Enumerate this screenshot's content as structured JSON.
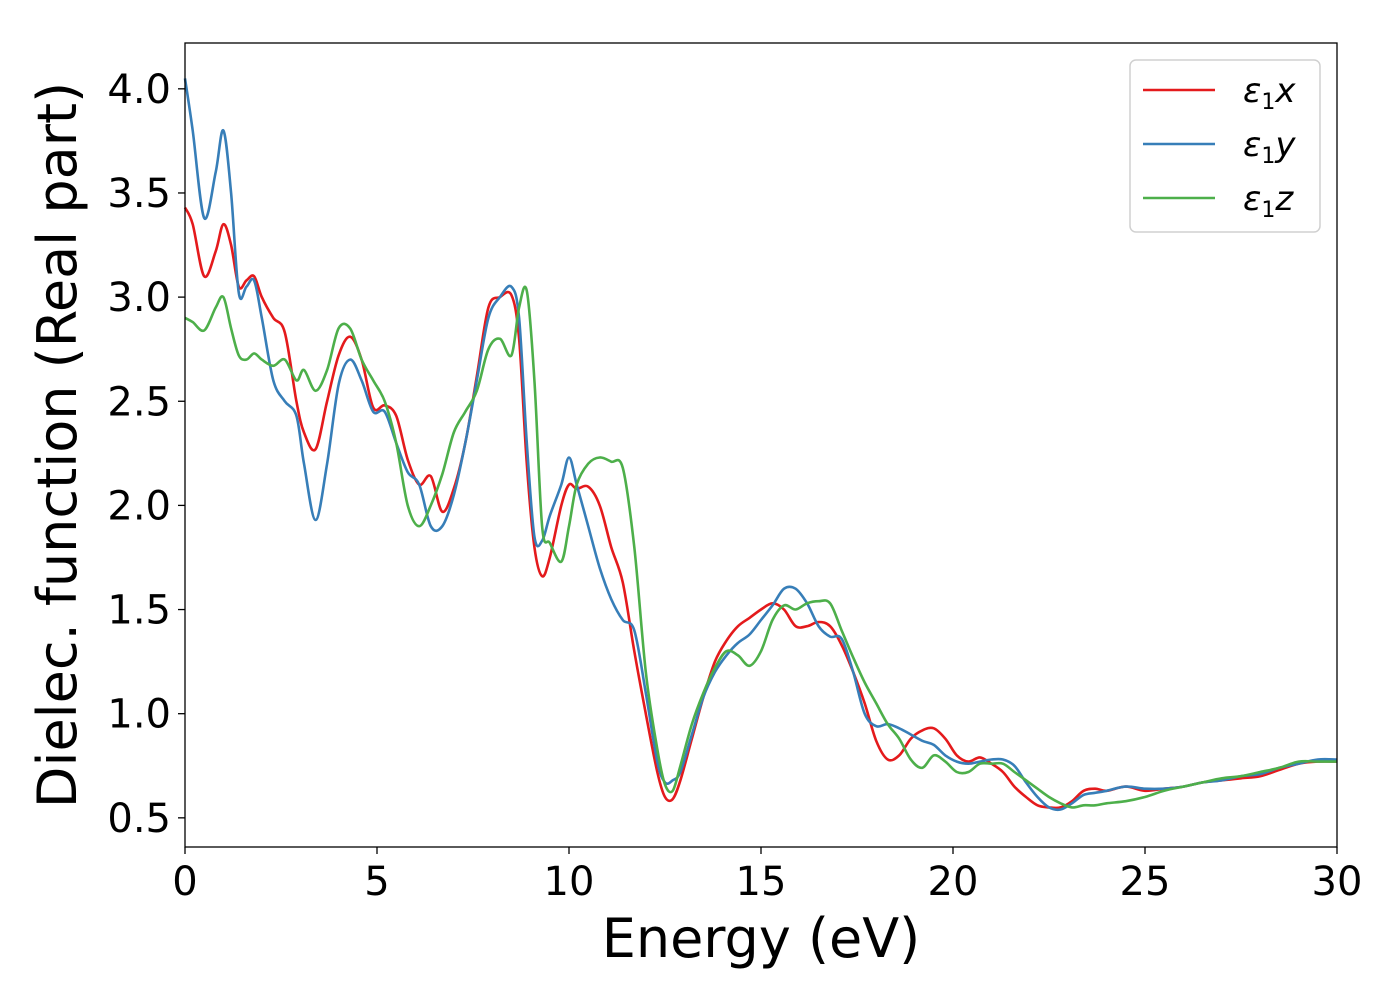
{
  "chart_data": {
    "type": "line",
    "title": "",
    "xlabel": "Energy (eV)",
    "ylabel": "Dielec. function (Real part)",
    "xlim": [
      0,
      30
    ],
    "ylim": [
      0.36,
      4.22
    ],
    "xticks": [
      0,
      5,
      10,
      15,
      20,
      25,
      30
    ],
    "yticks": [
      0.5,
      1.0,
      1.5,
      2.0,
      2.5,
      3.0,
      3.5,
      4.0
    ],
    "grid": false,
    "legend_position": "top-right",
    "series": [
      {
        "name": "ε1x",
        "legend_symbol": "ε",
        "legend_subscript": "1",
        "legend_suffix": "x",
        "color": "#e41a1c",
        "x": [
          0,
          0.2,
          0.5,
          0.8,
          1.0,
          1.2,
          1.4,
          1.6,
          1.8,
          2.0,
          2.3,
          2.6,
          2.9,
          3.1,
          3.4,
          3.7,
          4.0,
          4.3,
          4.6,
          4.9,
          5.2,
          5.5,
          5.8,
          6.1,
          6.4,
          6.7,
          7.0,
          7.3,
          7.6,
          7.9,
          8.2,
          8.5,
          8.7,
          8.9,
          9.1,
          9.3,
          9.5,
          9.8,
          10.0,
          10.2,
          10.5,
          10.8,
          11.1,
          11.4,
          11.7,
          12.0,
          12.3,
          12.5,
          12.7,
          12.9,
          13.2,
          13.5,
          13.8,
          14.1,
          14.4,
          14.7,
          15.0,
          15.3,
          15.6,
          15.9,
          16.2,
          16.5,
          16.8,
          17.1,
          17.4,
          17.7,
          18.0,
          18.3,
          18.6,
          18.9,
          19.2,
          19.5,
          19.8,
          20.1,
          20.4,
          20.7,
          21.0,
          21.3,
          21.6,
          21.9,
          22.2,
          22.5,
          22.8,
          23.1,
          23.4,
          23.7,
          24.0,
          24.5,
          25.0,
          25.5,
          26.0,
          26.5,
          27.0,
          27.5,
          28.0,
          28.5,
          29.0,
          29.5,
          30.0
        ],
        "values": [
          3.43,
          3.35,
          3.1,
          3.22,
          3.35,
          3.25,
          3.05,
          3.08,
          3.1,
          3.0,
          2.9,
          2.83,
          2.5,
          2.35,
          2.27,
          2.5,
          2.72,
          2.81,
          2.7,
          2.47,
          2.48,
          2.43,
          2.22,
          2.1,
          2.14,
          1.97,
          2.08,
          2.3,
          2.62,
          2.95,
          3.0,
          3.01,
          2.8,
          2.2,
          1.8,
          1.66,
          1.75,
          2.0,
          2.1,
          2.08,
          2.09,
          2.0,
          1.8,
          1.63,
          1.3,
          1.0,
          0.72,
          0.6,
          0.59,
          0.68,
          0.88,
          1.08,
          1.25,
          1.35,
          1.42,
          1.46,
          1.5,
          1.53,
          1.5,
          1.42,
          1.42,
          1.44,
          1.42,
          1.33,
          1.2,
          1.05,
          0.87,
          0.78,
          0.8,
          0.88,
          0.92,
          0.93,
          0.88,
          0.8,
          0.77,
          0.79,
          0.76,
          0.72,
          0.65,
          0.6,
          0.56,
          0.55,
          0.55,
          0.58,
          0.63,
          0.64,
          0.63,
          0.65,
          0.63,
          0.64,
          0.65,
          0.67,
          0.68,
          0.69,
          0.7,
          0.73,
          0.76,
          0.77,
          0.77
        ]
      },
      {
        "name": "ε1y",
        "legend_symbol": "ε",
        "legend_subscript": "1",
        "legend_suffix": "y",
        "color": "#377eb8",
        "x": [
          0,
          0.2,
          0.5,
          0.8,
          1.0,
          1.2,
          1.4,
          1.6,
          1.8,
          2.0,
          2.3,
          2.6,
          2.9,
          3.1,
          3.4,
          3.7,
          4.0,
          4.3,
          4.6,
          4.9,
          5.2,
          5.5,
          5.8,
          6.1,
          6.4,
          6.7,
          7.0,
          7.3,
          7.6,
          7.9,
          8.2,
          8.5,
          8.7,
          8.9,
          9.1,
          9.3,
          9.5,
          9.8,
          10.0,
          10.2,
          10.5,
          10.8,
          11.1,
          11.4,
          11.7,
          12.0,
          12.3,
          12.5,
          12.7,
          12.9,
          13.2,
          13.5,
          13.8,
          14.1,
          14.4,
          14.7,
          15.0,
          15.3,
          15.6,
          15.9,
          16.2,
          16.5,
          16.8,
          17.1,
          17.4,
          17.7,
          18.0,
          18.3,
          18.6,
          18.9,
          19.2,
          19.5,
          19.8,
          20.1,
          20.4,
          20.7,
          21.0,
          21.3,
          21.6,
          21.9,
          22.2,
          22.5,
          22.8,
          23.1,
          23.4,
          23.7,
          24.0,
          24.5,
          25.0,
          25.5,
          26.0,
          26.5,
          27.0,
          27.5,
          28.0,
          28.5,
          29.0,
          29.5,
          30.0
        ],
        "values": [
          4.05,
          3.8,
          3.38,
          3.6,
          3.8,
          3.5,
          3.02,
          3.05,
          3.08,
          2.9,
          2.6,
          2.5,
          2.43,
          2.2,
          1.93,
          2.2,
          2.58,
          2.7,
          2.6,
          2.45,
          2.45,
          2.3,
          2.16,
          2.1,
          1.9,
          1.9,
          2.05,
          2.3,
          2.6,
          2.9,
          3.0,
          3.05,
          2.9,
          2.3,
          1.85,
          1.83,
          1.95,
          2.1,
          2.23,
          2.1,
          1.9,
          1.7,
          1.55,
          1.45,
          1.4,
          1.1,
          0.77,
          0.67,
          0.68,
          0.72,
          0.9,
          1.08,
          1.2,
          1.28,
          1.34,
          1.38,
          1.45,
          1.52,
          1.6,
          1.6,
          1.53,
          1.42,
          1.37,
          1.36,
          1.2,
          1.0,
          0.94,
          0.95,
          0.93,
          0.9,
          0.87,
          0.85,
          0.8,
          0.77,
          0.76,
          0.77,
          0.78,
          0.78,
          0.75,
          0.67,
          0.6,
          0.55,
          0.54,
          0.57,
          0.61,
          0.62,
          0.63,
          0.65,
          0.64,
          0.64,
          0.65,
          0.67,
          0.68,
          0.7,
          0.71,
          0.74,
          0.76,
          0.78,
          0.78
        ]
      },
      {
        "name": "ε1z",
        "legend_symbol": "ε",
        "legend_subscript": "1",
        "legend_suffix": "z",
        "color": "#4daf4a",
        "x": [
          0,
          0.2,
          0.5,
          0.8,
          1.0,
          1.2,
          1.4,
          1.6,
          1.8,
          2.0,
          2.3,
          2.6,
          2.9,
          3.1,
          3.4,
          3.7,
          4.0,
          4.3,
          4.6,
          4.9,
          5.2,
          5.5,
          5.8,
          6.1,
          6.4,
          6.7,
          7.0,
          7.3,
          7.6,
          7.9,
          8.2,
          8.5,
          8.7,
          8.9,
          9.1,
          9.3,
          9.5,
          9.8,
          10.0,
          10.2,
          10.5,
          10.8,
          11.1,
          11.4,
          11.7,
          12.0,
          12.3,
          12.5,
          12.7,
          12.9,
          13.2,
          13.5,
          13.8,
          14.1,
          14.4,
          14.7,
          15.0,
          15.3,
          15.6,
          15.9,
          16.2,
          16.5,
          16.8,
          17.1,
          17.4,
          17.7,
          18.0,
          18.3,
          18.6,
          18.9,
          19.2,
          19.5,
          19.8,
          20.1,
          20.4,
          20.7,
          21.0,
          21.3,
          21.6,
          21.9,
          22.2,
          22.5,
          22.8,
          23.1,
          23.4,
          23.7,
          24.0,
          24.5,
          25.0,
          25.5,
          26.0,
          26.5,
          27.0,
          27.5,
          28.0,
          28.5,
          29.0,
          29.5,
          30.0
        ],
        "values": [
          2.9,
          2.88,
          2.84,
          2.95,
          3.0,
          2.85,
          2.72,
          2.7,
          2.73,
          2.7,
          2.67,
          2.7,
          2.6,
          2.65,
          2.55,
          2.65,
          2.85,
          2.85,
          2.7,
          2.6,
          2.5,
          2.3,
          2.0,
          1.9,
          2.0,
          2.15,
          2.35,
          2.45,
          2.55,
          2.75,
          2.8,
          2.72,
          2.95,
          3.03,
          2.6,
          1.9,
          1.82,
          1.73,
          1.9,
          2.1,
          2.2,
          2.23,
          2.21,
          2.18,
          1.8,
          1.2,
          0.83,
          0.66,
          0.63,
          0.75,
          0.95,
          1.1,
          1.22,
          1.3,
          1.28,
          1.23,
          1.3,
          1.45,
          1.52,
          1.5,
          1.53,
          1.54,
          1.53,
          1.4,
          1.27,
          1.15,
          1.05,
          0.95,
          0.88,
          0.78,
          0.74,
          0.8,
          0.77,
          0.72,
          0.72,
          0.76,
          0.76,
          0.76,
          0.72,
          0.68,
          0.64,
          0.6,
          0.57,
          0.55,
          0.56,
          0.56,
          0.57,
          0.58,
          0.6,
          0.63,
          0.65,
          0.67,
          0.69,
          0.7,
          0.72,
          0.74,
          0.77,
          0.77,
          0.77
        ]
      }
    ]
  }
}
